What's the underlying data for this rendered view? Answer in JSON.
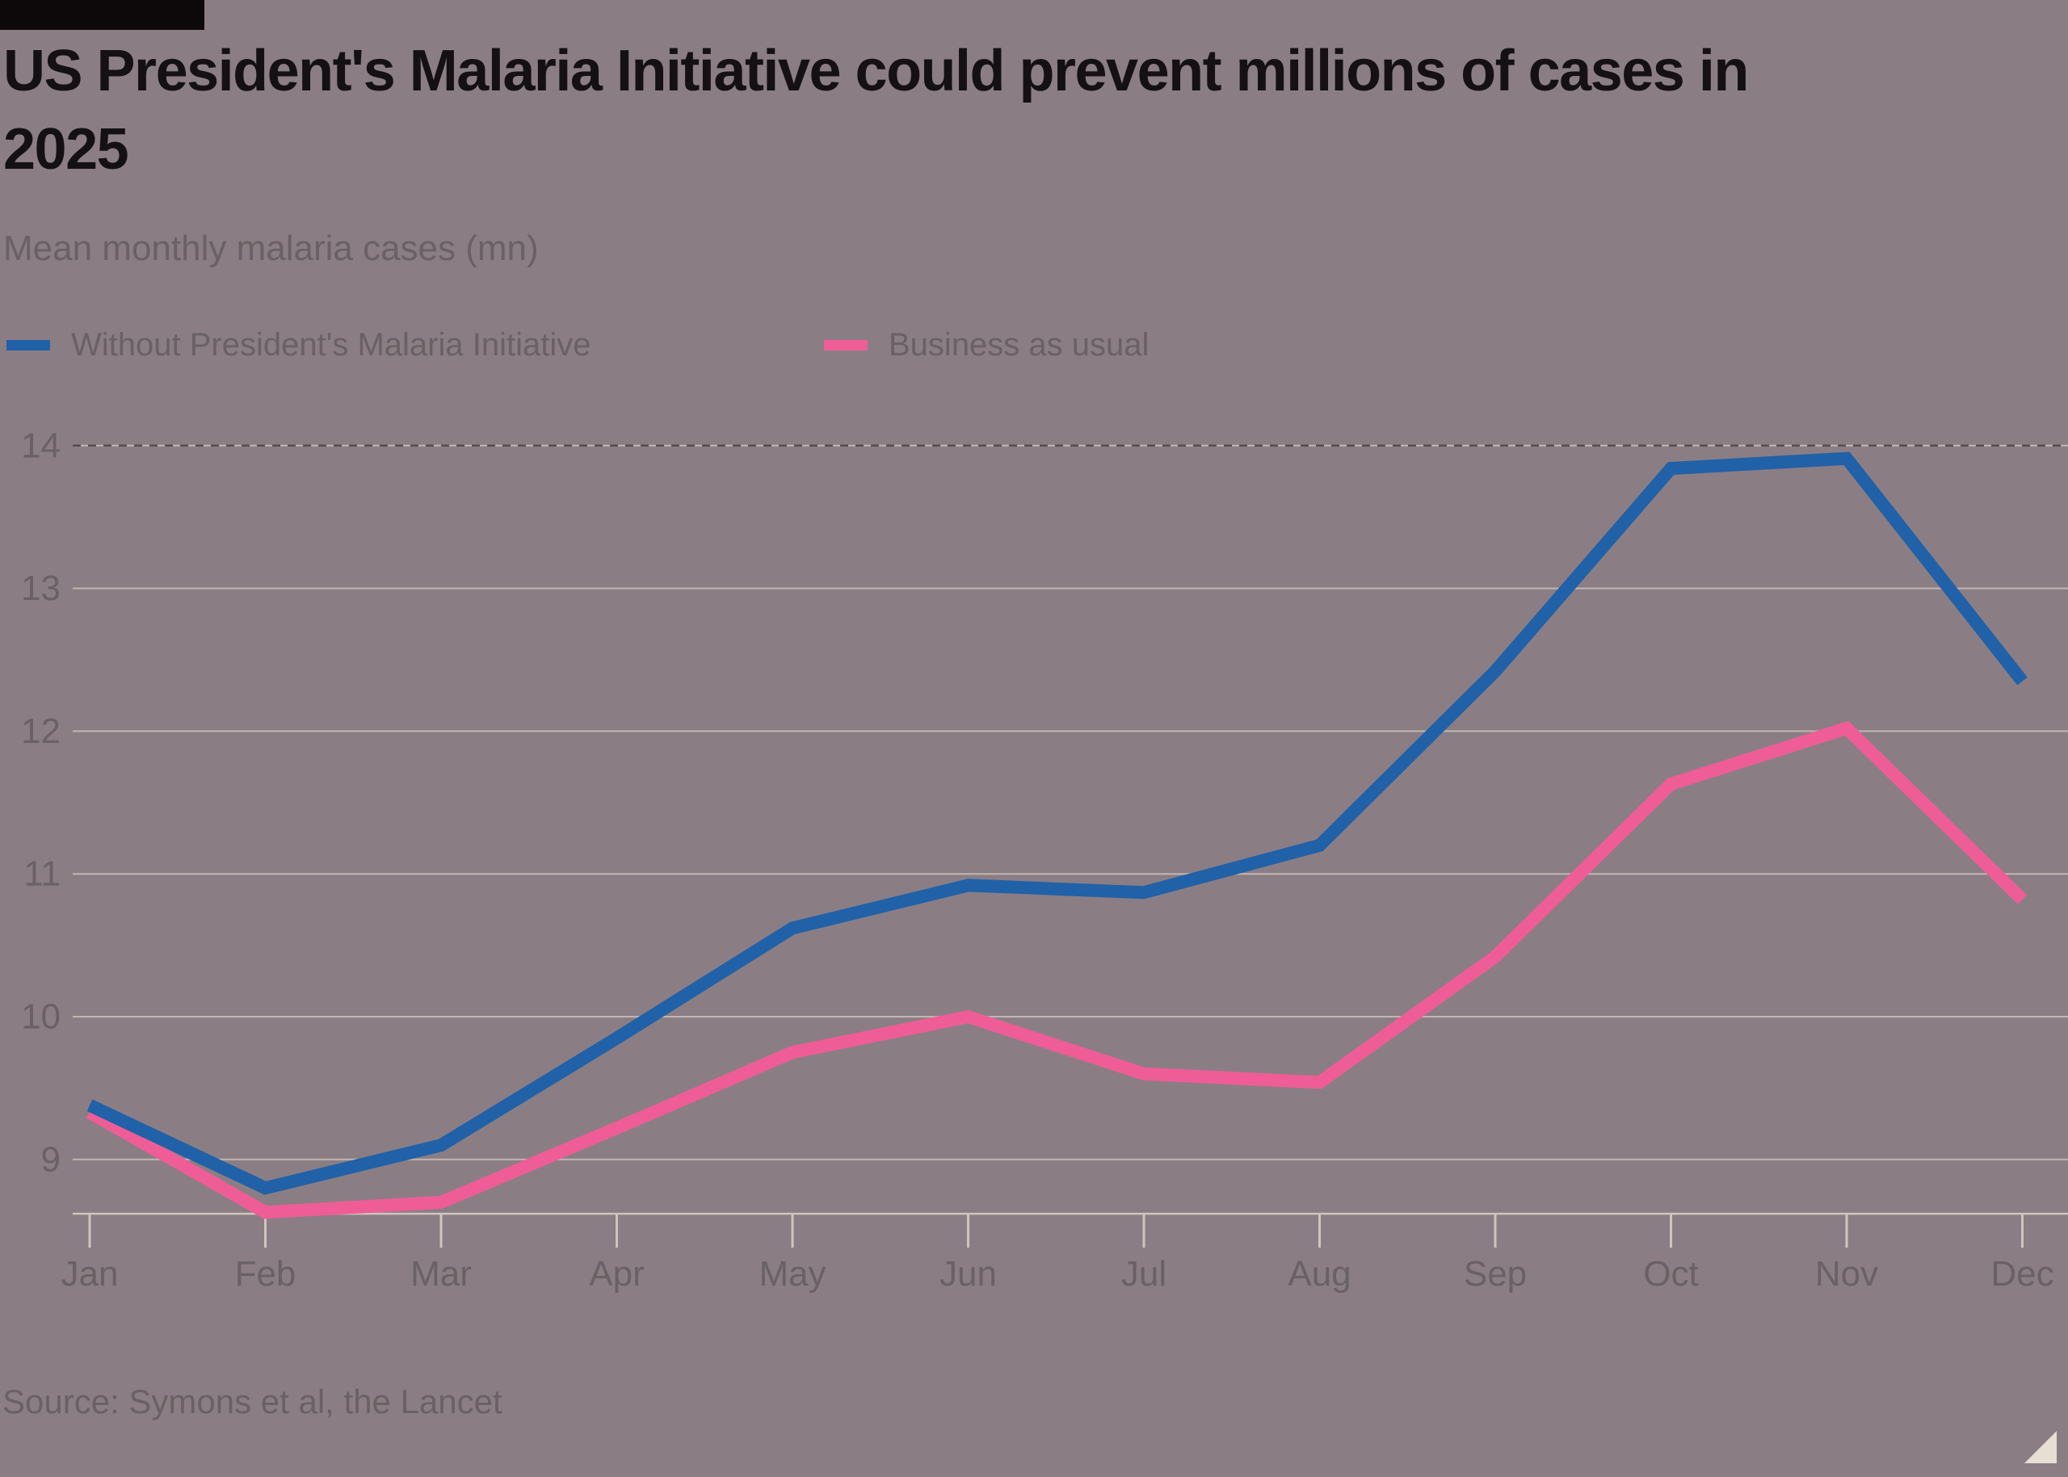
{
  "header": {
    "title_line1": "US President's Malaria Initiative could prevent millions of cases in",
    "title_line2": "2025",
    "subtitle": "Mean monthly malaria cases (mn)"
  },
  "legend": {
    "items": [
      {
        "label": "Without President's Malaria Initiative",
        "color": "#2161a8"
      },
      {
        "label": "Business as usual",
        "color": "#ef5d96"
      }
    ]
  },
  "footer": {
    "source": "Source: Symons et al, the Lancet"
  },
  "chart_data": {
    "type": "line",
    "title": "US President's Malaria Initiative could prevent millions of cases in 2025",
    "subtitle": "Mean monthly malaria cases (mn)",
    "categories": [
      "Jan",
      "Feb",
      "Mar",
      "Apr",
      "May",
      "Jun",
      "Jul",
      "Aug",
      "Sep",
      "Oct",
      "Nov",
      "Dec"
    ],
    "series": [
      {
        "name": "Without President's Malaria Initiative",
        "color": "#2161a8",
        "values": [
          9.38,
          8.8,
          9.1,
          9.85,
          10.62,
          10.92,
          10.87,
          11.2,
          12.42,
          13.84,
          13.91,
          12.35
        ]
      },
      {
        "name": "Business as usual",
        "color": "#ef5d96",
        "values": [
          9.33,
          8.63,
          8.7,
          9.22,
          9.75,
          10.0,
          9.6,
          9.54,
          10.42,
          11.63,
          12.02,
          10.82
        ]
      }
    ],
    "yticks": [
      9,
      10,
      11,
      12,
      13,
      14
    ],
    "ylim": [
      8.62,
      14.4
    ],
    "grid": "horizontal",
    "top_gridline_dashed": true,
    "legend_position": "top-left",
    "source": "Source: Symons et al, the Lancet",
    "colors": {
      "background": "#8a7e84",
      "gridline": "#c0b7b0",
      "top_gridline": "#564d52",
      "axis": "#cfc5be",
      "tick_label": "#6a6164"
    }
  }
}
